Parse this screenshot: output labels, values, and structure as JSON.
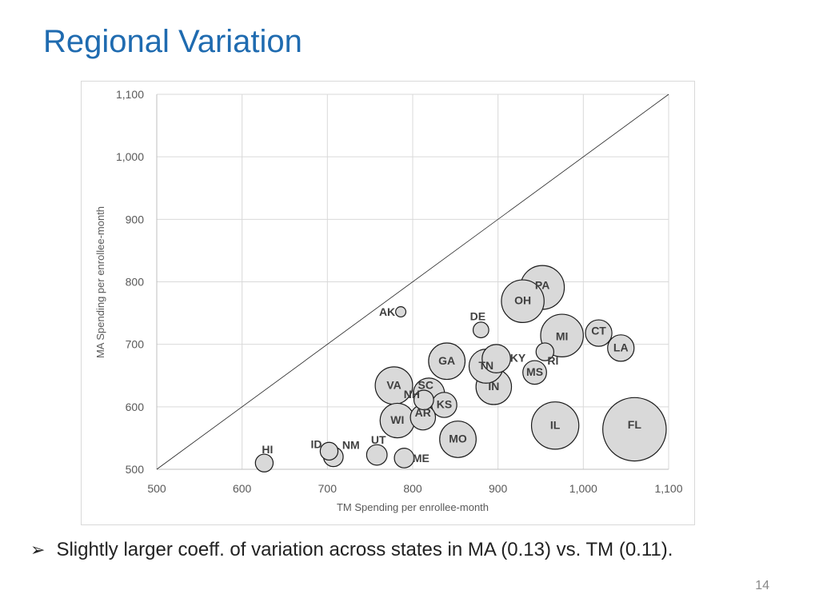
{
  "slide": {
    "title": "Regional Variation",
    "bullet": "Slightly larger coeff. of variation across states in MA (0.13) vs. TM (0.11).",
    "page_number": "14"
  },
  "colors": {
    "title": "#1f6bb0",
    "bubble_fill": "#d9d9d9",
    "bubble_stroke": "#1a1a1a",
    "grid": "#d9d9d9"
  },
  "chart_data": {
    "type": "scatter",
    "title": "",
    "xlabel": "TM Spending per enrollee-month",
    "ylabel": "MA Spending per enrollee-month",
    "xlim": [
      500,
      1100
    ],
    "ylim": [
      500,
      1100
    ],
    "x_ticks": [
      500,
      600,
      700,
      800,
      900,
      1000,
      1100
    ],
    "y_ticks": [
      500,
      600,
      700,
      800,
      900,
      1000,
      1100
    ],
    "x_tick_labels": [
      "500",
      "600",
      "700",
      "800",
      "900",
      "1,000",
      "1,100"
    ],
    "y_tick_labels": [
      "500",
      "600",
      "700",
      "800",
      "900",
      "1,000",
      "1,100"
    ],
    "grid": true,
    "reference_line": "y = x",
    "bubble_size_note": "bubble size ~ enrollment (relative)",
    "points": [
      {
        "label": "PA",
        "x": 952,
        "y": 791,
        "size": 5.5
      },
      {
        "label": "OH",
        "x": 929,
        "y": 769,
        "size": 5.2
      },
      {
        "label": "AK",
        "x": 786,
        "y": 752,
        "size": 0.3
      },
      {
        "label": "DE",
        "x": 880,
        "y": 723,
        "size": 0.7
      },
      {
        "label": "MI",
        "x": 975,
        "y": 714,
        "size": 5.2
      },
      {
        "label": "CT",
        "x": 1018,
        "y": 718,
        "size": 2.0
      },
      {
        "label": "LA",
        "x": 1044,
        "y": 694,
        "size": 2.0
      },
      {
        "label": "RI",
        "x": 955,
        "y": 688,
        "size": 0.9
      },
      {
        "label": "KY",
        "x": 898,
        "y": 677,
        "size": 2.3
      },
      {
        "label": "GA",
        "x": 840,
        "y": 673,
        "size": 3.8
      },
      {
        "label": "TN",
        "x": 886,
        "y": 665,
        "size": 3.3
      },
      {
        "label": "MS",
        "x": 943,
        "y": 655,
        "size": 1.6
      },
      {
        "label": "IN",
        "x": 895,
        "y": 632,
        "size": 3.6
      },
      {
        "label": "VA",
        "x": 778,
        "y": 634,
        "size": 4.0
      },
      {
        "label": "SC",
        "x": 819,
        "y": 621,
        "size": 2.8
      },
      {
        "label": "NH",
        "x": 813,
        "y": 611,
        "size": 1.1
      },
      {
        "label": "KS",
        "x": 837,
        "y": 603,
        "size": 1.8
      },
      {
        "label": "WI",
        "x": 782,
        "y": 578,
        "size": 3.4
      },
      {
        "label": "AR",
        "x": 812,
        "y": 583,
        "size": 1.8
      },
      {
        "label": "IL",
        "x": 967,
        "y": 570,
        "size": 6.4
      },
      {
        "label": "FL",
        "x": 1060,
        "y": 564,
        "size": 11.5
      },
      {
        "label": "MO",
        "x": 853,
        "y": 548,
        "size": 3.8
      },
      {
        "label": "UT",
        "x": 758,
        "y": 523,
        "size": 1.2
      },
      {
        "label": "NM",
        "x": 707,
        "y": 520,
        "size": 1.1
      },
      {
        "label": "ID",
        "x": 702,
        "y": 529,
        "size": 0.9
      },
      {
        "label": "ME",
        "x": 790,
        "y": 518,
        "size": 1.1
      },
      {
        "label": "HI",
        "x": 626,
        "y": 510,
        "size": 0.9
      }
    ]
  }
}
